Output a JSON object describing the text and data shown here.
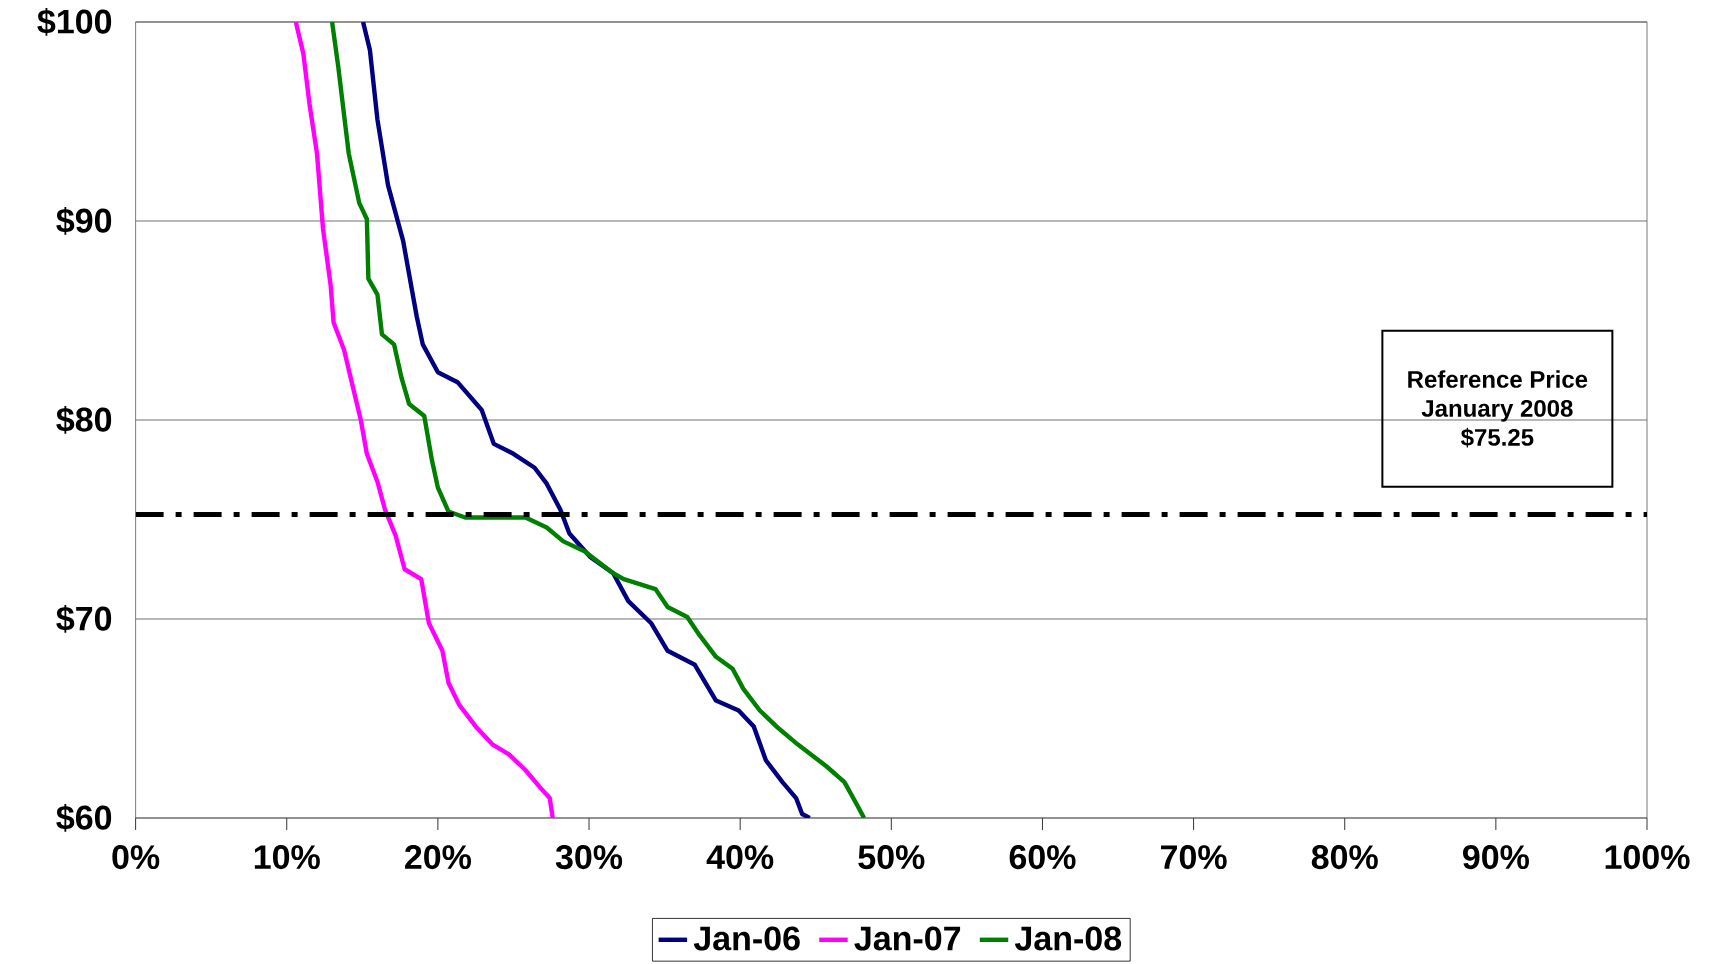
{
  "chart_data": {
    "type": "line",
    "annotations": [
      "Reference Price",
      "January 2008",
      "$75.25"
    ],
    "xlim": [
      0,
      100
    ],
    "ylim": [
      60,
      100
    ],
    "xticks": [
      {
        "value": 0,
        "label": "0%"
      },
      {
        "value": 10,
        "label": "10%"
      },
      {
        "value": 20,
        "label": "20%"
      },
      {
        "value": 30,
        "label": "30%"
      },
      {
        "value": 40,
        "label": "40%"
      },
      {
        "value": 50,
        "label": "50%"
      },
      {
        "value": 60,
        "label": "60%"
      },
      {
        "value": 70,
        "label": "70%"
      },
      {
        "value": 80,
        "label": "80%"
      },
      {
        "value": 90,
        "label": "90%"
      },
      {
        "value": 100,
        "label": "100%"
      }
    ],
    "yticks": [
      {
        "value": 60,
        "label": "$60"
      },
      {
        "value": 70,
        "label": "$70"
      },
      {
        "value": 80,
        "label": "$80"
      },
      {
        "value": 90,
        "label": "$90"
      },
      {
        "value": 100,
        "label": "$100"
      }
    ],
    "grid": "y",
    "legend": "bottom",
    "marker": "none",
    "line_style": "solid",
    "ref_lines": [
      {
        "axis": "y",
        "value": 75.25,
        "color": "#000000",
        "line_style": "dashdot"
      }
    ],
    "series": [
      {
        "name": "Jan-06",
        "color": "#000080",
        "x": [
          15.05,
          15.5,
          16.0,
          16.7,
          17.7,
          18.6,
          19.0,
          20.0,
          21.3,
          22.9,
          23.7,
          25.0,
          26.4,
          27.2,
          28.1,
          28.7,
          30.1,
          31.6,
          32.6,
          34.1,
          35.2,
          37.0,
          38.4,
          39.9,
          40.9,
          41.7,
          42.8,
          43.7,
          44.1,
          44.6
        ],
        "values": [
          100,
          98.6,
          95.1,
          91.8,
          89.0,
          85.2,
          83.8,
          82.4,
          81.9,
          80.5,
          78.8,
          78.3,
          77.6,
          76.8,
          75.5,
          74.3,
          73.1,
          72.3,
          70.9,
          69.8,
          68.4,
          67.7,
          65.9,
          65.4,
          64.6,
          62.9,
          61.8,
          61.0,
          60.2,
          60
        ]
      },
      {
        "name": "Jan-07",
        "color": "#ff00ff",
        "x": [
          10.6,
          11.1,
          11.5,
          12.0,
          12.4,
          12.9,
          13.1,
          13.8,
          14.3,
          14.9,
          15.3,
          16.0,
          16.5,
          17.2,
          17.8,
          18.9,
          19.4,
          20.3,
          20.7,
          21.4,
          22.5,
          23.6,
          24.7,
          25.8,
          26.8,
          27.4,
          27.6
        ],
        "values": [
          100,
          98.4,
          95.9,
          93.4,
          89.6,
          86.8,
          84.9,
          83.5,
          81.9,
          80.0,
          78.3,
          76.9,
          75.5,
          74.2,
          72.5,
          72.0,
          69.8,
          68.4,
          66.8,
          65.7,
          64.6,
          63.7,
          63.2,
          62.4,
          61.5,
          61.0,
          60
        ]
      },
      {
        "name": "Jan-08",
        "color": "#008000",
        "x": [
          13.0,
          13.4,
          14.1,
          14.8,
          15.3,
          15.4,
          16.0,
          16.3,
          17.1,
          17.6,
          18.1,
          19.1,
          19.6,
          20.0,
          20.7,
          21.8,
          25.8,
          27.2,
          28.3,
          29.7,
          31.6,
          32.3,
          34.4,
          35.2,
          36.5,
          37.3,
          38.4,
          39.5,
          40.2,
          41.3,
          42.4,
          43.8,
          45.7,
          46.9,
          47.7,
          48.2
        ],
        "values": [
          100,
          97.8,
          93.4,
          90.9,
          90.1,
          87.1,
          86.3,
          84.3,
          83.8,
          82.1,
          80.8,
          80.2,
          78.0,
          76.6,
          75.4,
          75.1,
          75.1,
          74.6,
          73.9,
          73.4,
          72.3,
          72.0,
          71.5,
          70.6,
          70.1,
          69.2,
          68.1,
          67.5,
          66.5,
          65.4,
          64.6,
          63.7,
          62.6,
          61.8,
          60.7,
          60
        ]
      }
    ]
  }
}
